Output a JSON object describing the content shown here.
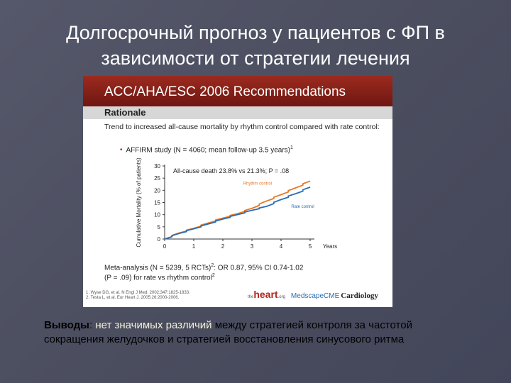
{
  "slide": {
    "title": "Долгосрочный прогноз у пациентов с ФП в зависимости от стратегии лечения"
  },
  "panel": {
    "header": "ACC/AHA/ESC 2006 Recommendations",
    "subheader": "Rationale",
    "rationale": "Trend to increased all-cause mortality by rhythm control compared with rate control:",
    "bullet": "AFFIRM study (N = 4060; mean follow-up 3.5 years)",
    "bullet_sup": "1",
    "meta_line1": "Meta-analysis (N = 5239, 5 RCTs)",
    "meta_sup1": "2",
    "meta_line1_rest": ": OR 0.87, 95% CI 0.74-1.02",
    "meta_line2": "(P = .09) for rate vs rhythm control",
    "meta_sup2": "2",
    "ref1": "1. Wyse DG, et al. N Engl J Med. 2002;347:1825-1833.",
    "ref2": "2. Testa L, et al. Eur Heart J. 2005;26:2000-2006.",
    "logo_heart": "heart",
    "logo_heart_small": "the",
    "logo_heart_org": ".org",
    "logo_medscape": "MedscapeCME",
    "logo_cardiology": "Cardiology"
  },
  "chart_data": {
    "type": "line",
    "annotation": "All-cause death 23.8% vs 21.3%; P = .08",
    "ylabel": "Cumulative Mortality (% of patients)",
    "xlabel": "Years",
    "ylim": [
      0,
      30
    ],
    "xlim": [
      0,
      5
    ],
    "yticks": [
      0,
      5,
      10,
      15,
      20,
      25,
      30
    ],
    "xticks": [
      0,
      1,
      2,
      3,
      4,
      5
    ],
    "grid": false,
    "series": [
      {
        "name": "Rhythm control",
        "color": "#e87722",
        "x": [
          0,
          0.5,
          1,
          1.5,
          2,
          2.5,
          3,
          3.5,
          4,
          4.5,
          5
        ],
        "values": [
          0,
          2.5,
          4.4,
          6.6,
          8.6,
          10.4,
          12.6,
          15.6,
          18.2,
          21.0,
          23.8
        ]
      },
      {
        "name": "Rate control",
        "color": "#2a6db3",
        "x": [
          0,
          0.5,
          1,
          1.5,
          2,
          2.5,
          3,
          3.5,
          4,
          4.5,
          5
        ],
        "values": [
          0,
          2.3,
          4.2,
          6.2,
          8.2,
          10.0,
          11.8,
          13.4,
          16.2,
          18.6,
          21.3
        ]
      }
    ]
  },
  "conclusion": {
    "key": "Выводы",
    "sep": ": ",
    "highlight": "нет значимых различий",
    "rest": " между стратегией контроля за частотой сокращения желудочков и стратегией восстановления синусового ритма"
  }
}
